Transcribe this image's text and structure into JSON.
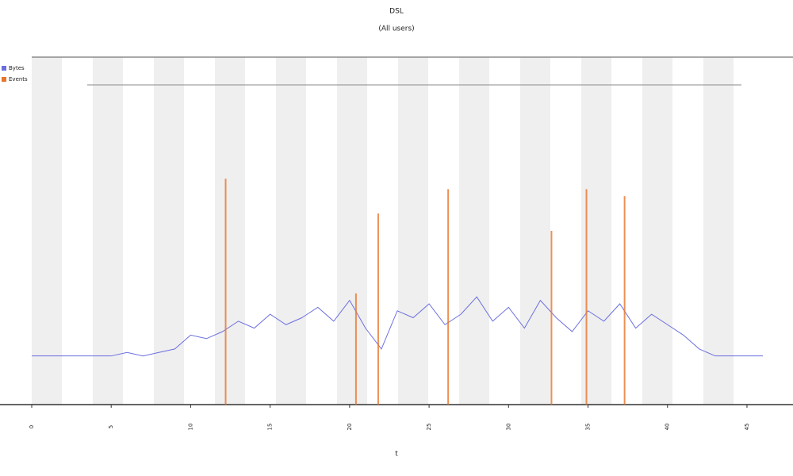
{
  "chart_data": {
    "type": "line",
    "title": "DSL",
    "subtitle": "(All users)",
    "x_label": "t",
    "xlim": [
      0,
      46
    ],
    "ylim": [
      0,
      100
    ],
    "xticks": [
      0,
      5,
      10,
      15,
      20,
      25,
      30,
      35,
      40,
      45
    ],
    "series": [
      {
        "name": "Bytes",
        "type": "line",
        "color": "#6b6fe0",
        "x": [
          0,
          1,
          2,
          3,
          4,
          5,
          6,
          7,
          8,
          9,
          10,
          11,
          12,
          13,
          14,
          15,
          16,
          17,
          18,
          19,
          20,
          21,
          22,
          23,
          24,
          25,
          26,
          27,
          28,
          29,
          30,
          31,
          32,
          33,
          34,
          35,
          36,
          37,
          38,
          39,
          40,
          41,
          42,
          43,
          44,
          45,
          46
        ],
        "values": [
          14,
          14,
          14,
          14,
          14,
          14,
          15,
          14,
          15,
          16,
          20,
          19,
          21,
          24,
          22,
          26,
          23,
          25,
          28,
          24,
          30,
          22,
          16,
          27,
          25,
          29,
          23,
          26,
          31,
          24,
          28,
          22,
          30,
          25,
          21,
          27,
          24,
          29,
          22,
          26,
          23,
          20,
          16,
          14,
          14,
          14,
          14
        ]
      },
      {
        "name": "Events",
        "type": "bar",
        "color": "#e8742a",
        "x": [
          12.2,
          20.4,
          21.8,
          26.2,
          32.7,
          34.9,
          37.3
        ],
        "values": [
          65,
          32,
          55,
          62,
          50,
          62,
          60
        ]
      }
    ]
  }
}
